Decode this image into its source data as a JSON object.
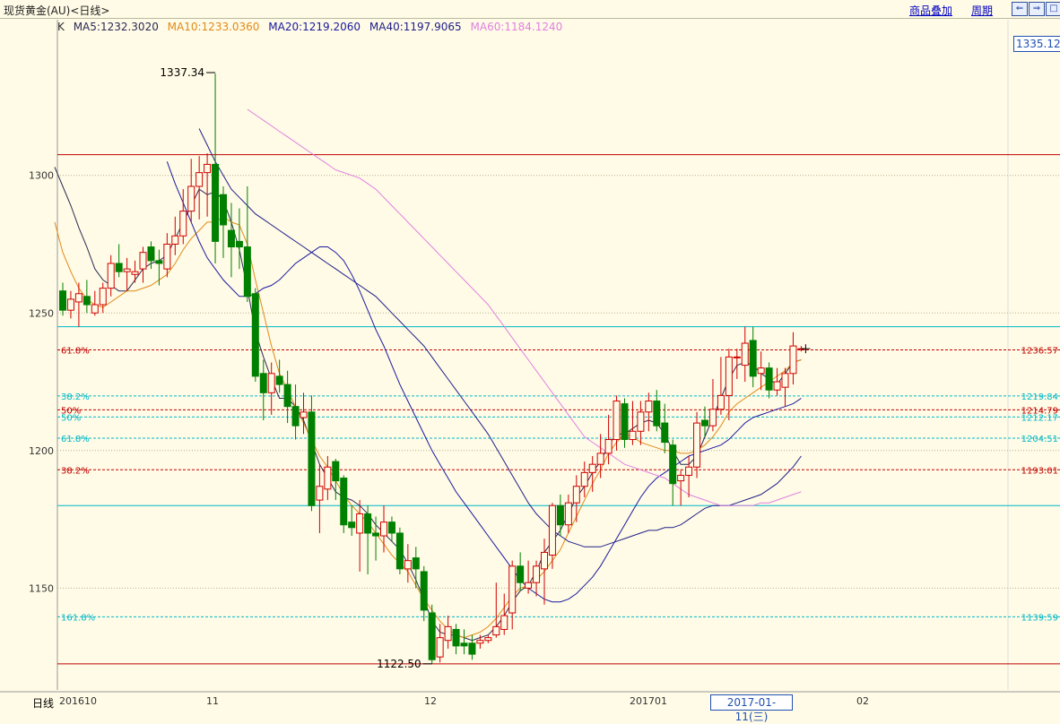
{
  "header": {
    "title": "现货黄金(AU)<日线>",
    "overlay_label": "商品叠加",
    "period_label": "周期",
    "nav_buttons": [
      "⇐",
      "⇒",
      "□"
    ]
  },
  "legend": {
    "k": "K",
    "ma5": "MA5:1232.3020",
    "ma10": "MA10:1233.0360",
    "ma20": "MA20:1219.2060",
    "ma40": "MA40:1197.9065",
    "ma60": "MA60:1184.1240"
  },
  "colors": {
    "up": "#d00000",
    "down": "#008000",
    "ma5": "#2a2a55",
    "ma10": "#e08a1a",
    "ma20": "#1a1aa0",
    "ma40": "#20208a",
    "ma60": "#e080e0",
    "fib_red": "#c00000",
    "fib_cyan": "#00b8c8",
    "background": "#fffbe6"
  },
  "current_price": "1335.12",
  "selected_date": "2017-01-11(三)",
  "bottom_left_label": "日线",
  "chart_data": {
    "type": "candlestick",
    "title": "现货黄金(AU)<日线>",
    "ylim": [
      1113,
      1352
    ],
    "y_ticks": [
      1150,
      1200,
      1250,
      1300
    ],
    "x_labels": [
      "201610",
      "11",
      "12",
      "201701",
      "02"
    ],
    "annotations": {
      "high": "1337.34",
      "low": "1122.50"
    },
    "horizontal_lines": [
      {
        "value": 1307.5,
        "color": "red_solid"
      },
      {
        "value": 1245.0,
        "color": "cyan_solid"
      },
      {
        "value": 1180.0,
        "color": "cyan_solid"
      },
      {
        "value": 1122.5,
        "color": "red_solid"
      }
    ],
    "fib_levels": [
      {
        "label": "61.8%",
        "value": 1236.57,
        "price_label": "1236.57",
        "color": "red"
      },
      {
        "label": "38.2%",
        "value": 1219.84,
        "price_label": "1219.84",
        "color": "cyan"
      },
      {
        "label": "50%",
        "value": 1214.79,
        "price_label": "1214.79",
        "color": "red"
      },
      {
        "label": "50%",
        "value": 1212.17,
        "price_label": "1212.17",
        "color": "cyan"
      },
      {
        "label": "61.8%",
        "value": 1204.51,
        "price_label": "1204.51",
        "color": "cyan"
      },
      {
        "label": "38.2%",
        "value": 1193.01,
        "price_label": "1193.01",
        "color": "red"
      },
      {
        "label": "161.8%",
        "value": 1139.59,
        "price_label": "1139.59",
        "color": "cyan"
      }
    ],
    "candles": [
      [
        1258,
        1251,
        1261,
        1249
      ],
      [
        1251,
        1255,
        1258,
        1248
      ],
      [
        1254,
        1257,
        1261,
        1245
      ],
      [
        1256,
        1253,
        1262,
        1250
      ],
      [
        1250,
        1253,
        1258,
        1249
      ],
      [
        1253,
        1259,
        1261,
        1250
      ],
      [
        1259,
        1268,
        1271,
        1256
      ],
      [
        1268,
        1265,
        1275,
        1263
      ],
      [
        1265,
        1266,
        1270,
        1258
      ],
      [
        1264,
        1265,
        1269,
        1261
      ],
      [
        1266,
        1272,
        1274,
        1261
      ],
      [
        1274,
        1269,
        1276,
        1266
      ],
      [
        1269,
        1268,
        1273,
        1260
      ],
      [
        1266,
        1275,
        1279,
        1263
      ],
      [
        1275,
        1278,
        1285,
        1271
      ],
      [
        1278,
        1287,
        1295,
        1275
      ],
      [
        1287,
        1296,
        1306,
        1283
      ],
      [
        1296,
        1301,
        1307,
        1284
      ],
      [
        1301,
        1304,
        1308,
        1285
      ],
      [
        1304,
        1276,
        1337,
        1268
      ],
      [
        1293,
        1282,
        1296,
        1270
      ],
      [
        1280,
        1274,
        1290,
        1263
      ],
      [
        1276,
        1274,
        1288,
        1266
      ],
      [
        1274,
        1256,
        1296,
        1254
      ],
      [
        1257,
        1227,
        1259,
        1225
      ],
      [
        1228,
        1221,
        1233,
        1211
      ],
      [
        1221,
        1228,
        1232,
        1213
      ],
      [
        1227,
        1224,
        1233,
        1221
      ],
      [
        1224,
        1216,
        1229,
        1210
      ],
      [
        1216,
        1209,
        1224,
        1204
      ],
      [
        1212,
        1214,
        1221,
        1206
      ],
      [
        1214,
        1180,
        1220,
        1178
      ],
      [
        1182,
        1187,
        1195,
        1170
      ],
      [
        1186,
        1194,
        1198,
        1182
      ],
      [
        1196,
        1189,
        1197,
        1182
      ],
      [
        1190,
        1173,
        1191,
        1170
      ],
      [
        1174,
        1172,
        1180,
        1169
      ],
      [
        1170,
        1177,
        1182,
        1156
      ],
      [
        1177,
        1170,
        1180,
        1155
      ],
      [
        1170,
        1169,
        1176,
        1160
      ],
      [
        1169,
        1174,
        1180,
        1163
      ],
      [
        1174,
        1170,
        1176,
        1167
      ],
      [
        1170,
        1157,
        1172,
        1155
      ],
      [
        1157,
        1160,
        1166,
        1152
      ],
      [
        1161,
        1157,
        1165,
        1150
      ],
      [
        1156,
        1142,
        1158,
        1138
      ],
      [
        1141,
        1124,
        1144,
        1122.5
      ],
      [
        1125,
        1132,
        1137,
        1123
      ],
      [
        1131,
        1136,
        1140,
        1128
      ],
      [
        1135,
        1129,
        1137,
        1126
      ],
      [
        1130,
        1129,
        1135,
        1126
      ],
      [
        1130,
        1126,
        1133,
        1124
      ],
      [
        1130,
        1131,
        1133,
        1128
      ],
      [
        1131,
        1132,
        1133,
        1130
      ],
      [
        1133,
        1136,
        1152,
        1132
      ],
      [
        1135,
        1140,
        1148,
        1133
      ],
      [
        1141,
        1158,
        1160,
        1135
      ],
      [
        1158,
        1152,
        1163,
        1149
      ],
      [
        1150,
        1152,
        1160,
        1148
      ],
      [
        1152,
        1158,
        1160,
        1147
      ],
      [
        1157,
        1163,
        1168,
        1144
      ],
      [
        1162,
        1180,
        1181,
        1157
      ],
      [
        1180,
        1173,
        1184,
        1169
      ],
      [
        1173,
        1181,
        1184,
        1170
      ],
      [
        1181,
        1187,
        1191,
        1174
      ],
      [
        1187,
        1192,
        1196,
        1183
      ],
      [
        1192,
        1195,
        1198,
        1185
      ],
      [
        1195,
        1199,
        1206,
        1190
      ],
      [
        1199,
        1204,
        1213,
        1195
      ],
      [
        1204,
        1218,
        1220,
        1200
      ],
      [
        1217,
        1204,
        1219,
        1201
      ],
      [
        1204,
        1207,
        1218,
        1202
      ],
      [
        1207,
        1214,
        1218,
        1202
      ],
      [
        1214,
        1218,
        1221,
        1207
      ],
      [
        1218,
        1209,
        1222,
        1207
      ],
      [
        1210,
        1203,
        1217,
        1199
      ],
      [
        1202,
        1188,
        1204,
        1180
      ],
      [
        1189,
        1191,
        1193,
        1180
      ],
      [
        1191,
        1194,
        1198,
        1183
      ],
      [
        1194,
        1210,
        1214,
        1190
      ],
      [
        1211,
        1209,
        1216,
        1205
      ],
      [
        1209,
        1215,
        1226,
        1207
      ],
      [
        1215,
        1220,
        1234,
        1213
      ],
      [
        1220,
        1234,
        1237,
        1211
      ],
      [
        1234,
        1234,
        1237,
        1226
      ],
      [
        1231,
        1239,
        1245,
        1225
      ],
      [
        1240,
        1227,
        1245,
        1223
      ],
      [
        1228,
        1230,
        1236,
        1222
      ],
      [
        1230,
        1222,
        1232,
        1219
      ],
      [
        1222,
        1225,
        1230,
        1220
      ],
      [
        1223,
        1228,
        1230,
        1216
      ],
      [
        1228,
        1238,
        1243,
        1224
      ],
      [
        1237,
        1237,
        1238,
        1236
      ]
    ],
    "series": [
      {
        "name": "MA5",
        "values": [
          1303,
          1296,
          1289,
          1281,
          1274,
          1266,
          1262,
          1260,
          1258,
          1258,
          1262,
          1266,
          1268,
          1269,
          1271,
          1277,
          1283,
          1289,
          1295,
          1293,
          1294,
          1291,
          1283,
          1273,
          1259,
          1243,
          1234,
          1226,
          1219,
          1219,
          1216,
          1211,
          1203,
          1195,
          1190,
          1185,
          1183,
          1182,
          1180,
          1177,
          1173,
          1170,
          1167,
          1164,
          1159,
          1153,
          1146,
          1138,
          1134,
          1133,
          1133,
          1132,
          1131,
          1132,
          1133,
          1136,
          1140,
          1145,
          1149,
          1151,
          1156,
          1163,
          1167,
          1171,
          1177,
          1183,
          1187,
          1192,
          1196,
          1202,
          1206,
          1206,
          1208,
          1210,
          1211,
          1210,
          1206,
          1200,
          1195,
          1195,
          1198,
          1205,
          1212,
          1219,
          1226,
          1231,
          1232,
          1231,
          1228,
          1226,
          1224,
          1228,
          1232,
          1233
        ]
      },
      {
        "name": "MA10",
        "values": [
          1283,
          1272,
          1265,
          1259,
          1255,
          1253,
          1252,
          1254,
          1256,
          1258,
          1258,
          1259,
          1260,
          1262,
          1264,
          1268,
          1273,
          1277,
          1280,
          1283,
          1283,
          1285,
          1283,
          1282,
          1275,
          1262,
          1250,
          1238,
          1228,
          1222,
          1216,
          1210,
          1204,
          1198,
          1194,
          1189,
          1184,
          1180,
          1177,
          1174,
          1170,
          1166,
          1162,
          1159,
          1156,
          1151,
          1146,
          1142,
          1138,
          1135,
          1133,
          1132,
          1133,
          1134,
          1136,
          1139,
          1143,
          1147,
          1150,
          1151,
          1153,
          1156,
          1160,
          1164,
          1170,
          1176,
          1182,
          1188,
          1193,
          1199,
          1203,
          1206,
          1205,
          1203,
          1202,
          1201,
          1200,
          1200,
          1199,
          1199,
          1200,
          1202,
          1205,
          1209,
          1214,
          1217,
          1219,
          1221,
          1223,
          1225,
          1227,
          1229,
          1232,
          1233
        ]
      },
      {
        "name": "MA20",
        "values": [
          1305,
          1297,
          1290,
          1283,
          1276,
          1270,
          1266,
          1262,
          1259,
          1256,
          1256,
          1257,
          1259,
          1260,
          1262,
          1265,
          1268,
          1270,
          1272,
          1274,
          1274,
          1272,
          1269,
          1264,
          1258,
          1251,
          1244,
          1238,
          1231,
          1224,
          1218,
          1212,
          1206,
          1200,
          1195,
          1190,
          1185,
          1181,
          1177,
          1173,
          1169,
          1165,
          1161,
          1157,
          1153,
          1150,
          1148,
          1146,
          1145,
          1145,
          1146,
          1148,
          1151,
          1154,
          1158,
          1163,
          1168,
          1173,
          1178,
          1183,
          1187,
          1190,
          1192,
          1194,
          1196,
          1198,
          1199,
          1200,
          1201,
          1202,
          1204,
          1207,
          1210,
          1212,
          1213,
          1214,
          1215,
          1216,
          1217,
          1219
        ]
      },
      {
        "name": "MA40",
        "values": [
          1317,
          1311,
          1305,
          1300,
          1295,
          1292,
          1289,
          1286,
          1284,
          1282,
          1280,
          1278,
          1276,
          1274,
          1272,
          1270,
          1268,
          1266,
          1264,
          1262,
          1260,
          1258,
          1256,
          1253,
          1250,
          1247,
          1244,
          1241,
          1238,
          1234,
          1230,
          1226,
          1222,
          1218,
          1214,
          1210,
          1206,
          1201,
          1196,
          1191,
          1186,
          1181,
          1177,
          1174,
          1171,
          1169,
          1167,
          1166,
          1165,
          1165,
          1165,
          1166,
          1167,
          1168,
          1169,
          1170,
          1171,
          1171,
          1172,
          1172,
          1173,
          1175,
          1177,
          1179,
          1180,
          1180,
          1180,
          1181,
          1182,
          1183,
          1184,
          1186,
          1188,
          1191,
          1194,
          1198
        ]
      },
      {
        "name": "MA60",
        "values": [
          1324,
          1322,
          1320,
          1318,
          1316,
          1314,
          1312,
          1310,
          1308,
          1306,
          1304,
          1302,
          1301,
          1300,
          1299,
          1297,
          1295,
          1292,
          1289,
          1286,
          1283,
          1280,
          1277,
          1274,
          1271,
          1268,
          1265,
          1262,
          1259,
          1256,
          1253,
          1249,
          1245,
          1241,
          1237,
          1233,
          1229,
          1225,
          1221,
          1217,
          1213,
          1209,
          1205,
          1203,
          1201,
          1199,
          1197,
          1195,
          1194,
          1193,
          1192,
          1191,
          1190,
          1188,
          1186,
          1184,
          1183,
          1182,
          1181,
          1180,
          1180,
          1180,
          1180,
          1180,
          1181,
          1181,
          1182,
          1183,
          1184,
          1185
        ]
      }
    ]
  }
}
